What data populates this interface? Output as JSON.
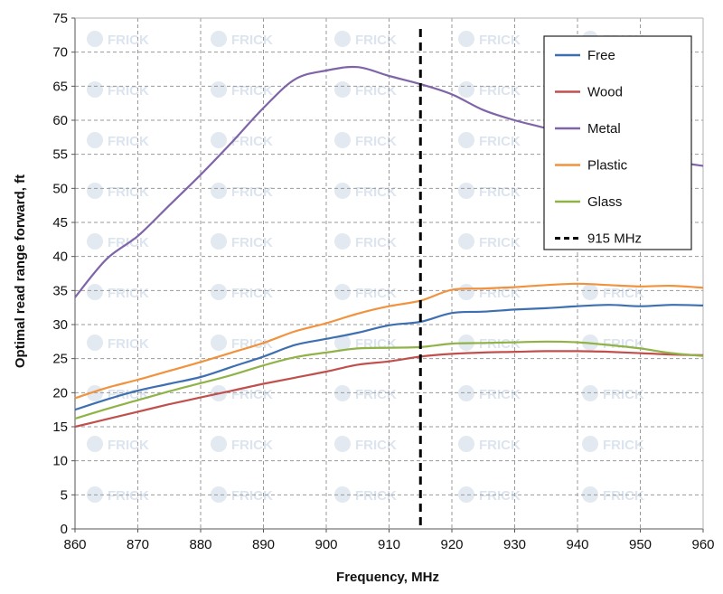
{
  "chart_data": {
    "type": "line",
    "title": "",
    "xlabel": "Frequency, MHz",
    "ylabel": "Optimal read range forward, ft",
    "xlim": [
      860,
      960
    ],
    "ylim": [
      0,
      75
    ],
    "x_ticks": [
      "860",
      "870",
      "880",
      "890",
      "900",
      "910",
      "920",
      "930",
      "940",
      "950",
      "960"
    ],
    "y_ticks": [
      "0",
      "5",
      "10",
      "15",
      "20",
      "25",
      "30",
      "35",
      "40",
      "45",
      "50",
      "55",
      "60",
      "65",
      "70",
      "75"
    ],
    "grid": true,
    "legend_position": "top-right",
    "watermark": "FRICK",
    "x": [
      860,
      865,
      870,
      875,
      880,
      885,
      890,
      895,
      900,
      905,
      910,
      915,
      920,
      925,
      930,
      935,
      940,
      945,
      950,
      955,
      960
    ],
    "series": [
      {
        "name": "Free",
        "color": "#3e6fb0",
        "values": [
          17.5,
          19.0,
          20.3,
          21.3,
          22.3,
          23.8,
          25.3,
          27.0,
          27.9,
          28.8,
          29.9,
          30.4,
          31.7,
          31.9,
          32.2,
          32.4,
          32.7,
          32.9,
          32.7,
          32.9,
          32.8
        ]
      },
      {
        "name": "Wood",
        "color": "#c0504d",
        "values": [
          15.0,
          16.1,
          17.2,
          18.3,
          19.3,
          20.3,
          21.3,
          22.2,
          23.1,
          24.1,
          24.6,
          25.3,
          25.7,
          25.9,
          26.0,
          26.1,
          26.1,
          26.0,
          25.8,
          25.6,
          25.5
        ]
      },
      {
        "name": "Metal",
        "color": "#7f64a8",
        "values": [
          34.0,
          39.6,
          43.0,
          47.5,
          52.0,
          56.8,
          61.8,
          66.0,
          67.3,
          67.8,
          66.5,
          65.3,
          63.8,
          61.5,
          60.0,
          58.8,
          57.3,
          55.3,
          54.1,
          53.9,
          53.3
        ]
      },
      {
        "name": "Plastic",
        "color": "#f0923e",
        "values": [
          19.2,
          20.7,
          21.9,
          23.2,
          24.5,
          25.9,
          27.3,
          29.0,
          30.2,
          31.6,
          32.7,
          33.5,
          35.1,
          35.3,
          35.5,
          35.8,
          36.0,
          35.8,
          35.6,
          35.7,
          35.4
        ]
      },
      {
        "name": "Glass",
        "color": "#8fb347",
        "values": [
          16.2,
          17.6,
          18.9,
          20.2,
          21.4,
          22.6,
          24.0,
          25.2,
          25.9,
          26.5,
          26.6,
          26.7,
          27.2,
          27.3,
          27.4,
          27.5,
          27.4,
          27.0,
          26.5,
          25.8,
          25.4
        ]
      }
    ],
    "reference_line": {
      "name": "915 MHz",
      "x": 915,
      "color": "#000000"
    }
  }
}
